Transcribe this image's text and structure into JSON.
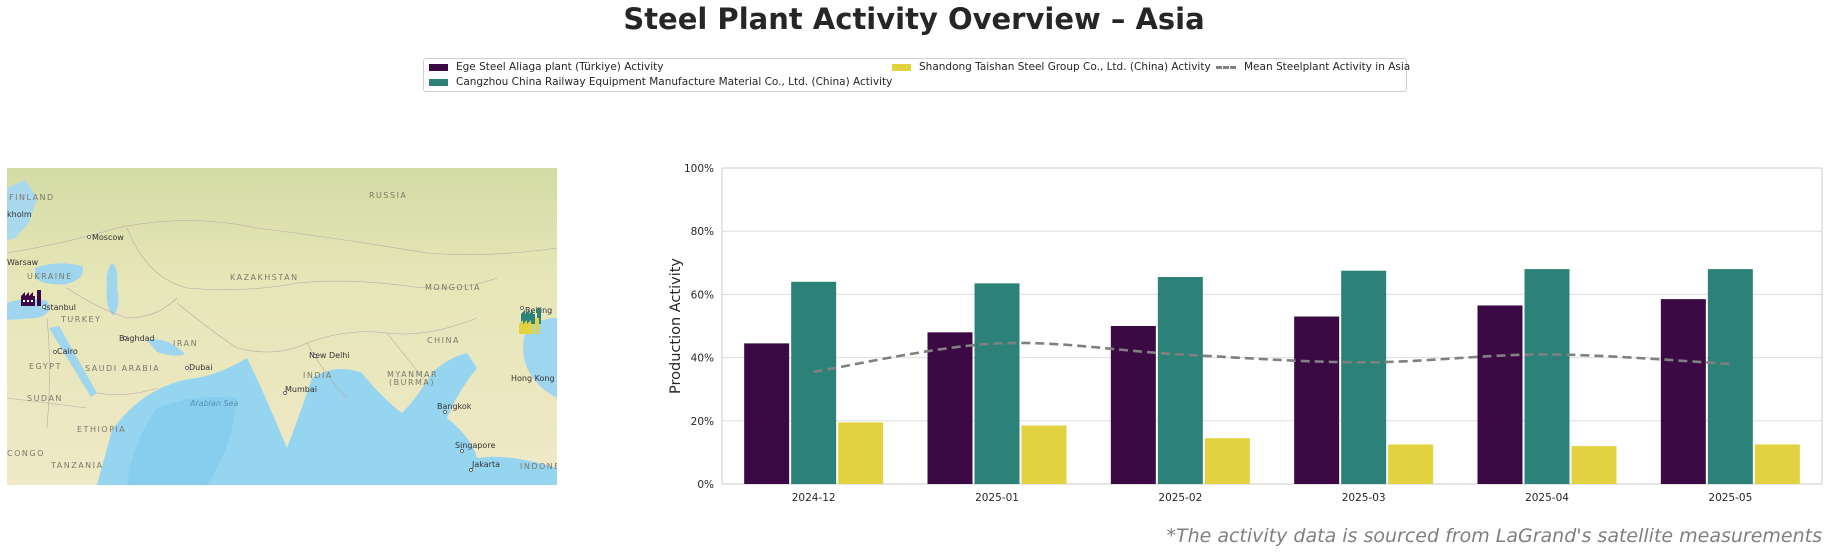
{
  "title": "Steel Plant Activity Overview – Asia",
  "footnote": "*The activity data is sourced from LaGrand's satellite measurements",
  "legend": [
    {
      "label": "Ege Steel Aliaga plant (Türkiye) Activity",
      "color": "#3b0a45",
      "kind": "bar"
    },
    {
      "label": "Cangzhou China Railway Equipment Manufacture Material Co., Ltd. (China) Activity",
      "color": "#2c8279",
      "kind": "bar"
    },
    {
      "label": "Shandong Taishan Steel Group Co., Ltd. (China) Activity",
      "color": "#e2d23f",
      "kind": "bar"
    },
    {
      "label": "Mean Steelplant Activity in Asia",
      "color": "#808080",
      "kind": "dashed-line"
    }
  ],
  "map": {
    "labels": [
      {
        "text": "FINLAND",
        "kind": "region"
      },
      {
        "text": "RUSSIA",
        "kind": "region"
      },
      {
        "text": "kholm",
        "kind": "city"
      },
      {
        "text": "Moscow",
        "kind": "city"
      },
      {
        "text": "Warsaw",
        "kind": "city"
      },
      {
        "text": "UKRAINE",
        "kind": "region"
      },
      {
        "text": "KAZAKHSTAN",
        "kind": "region"
      },
      {
        "text": "MONGOLIA",
        "kind": "region"
      },
      {
        "text": "Istanbul",
        "kind": "city"
      },
      {
        "text": "TURKEY",
        "kind": "region"
      },
      {
        "text": "Beijing",
        "kind": "city"
      },
      {
        "text": "Baghdad",
        "kind": "city"
      },
      {
        "text": "IRAN",
        "kind": "region"
      },
      {
        "text": "CHINA",
        "kind": "region"
      },
      {
        "text": "Cairo",
        "kind": "city"
      },
      {
        "text": "New Delhi",
        "kind": "city"
      },
      {
        "text": "EGYPT",
        "kind": "region"
      },
      {
        "text": "SAUDI ARABIA",
        "kind": "region"
      },
      {
        "text": "Dubai",
        "kind": "city"
      },
      {
        "text": "INDIA",
        "kind": "region"
      },
      {
        "text": "MYANMAR",
        "kind": "region"
      },
      {
        "text": "(BURMA)",
        "kind": "region"
      },
      {
        "text": "Hong Kong",
        "kind": "city"
      },
      {
        "text": "Mumbai",
        "kind": "city"
      },
      {
        "text": "SUDAN",
        "kind": "region"
      },
      {
        "text": "Arabian Sea",
        "kind": "sea"
      },
      {
        "text": "Bangkok",
        "kind": "city"
      },
      {
        "text": "ETHIOPIA",
        "kind": "region"
      },
      {
        "text": "Singapore",
        "kind": "city"
      },
      {
        "text": "CONGO",
        "kind": "region"
      },
      {
        "text": "TANZANIA",
        "kind": "region"
      },
      {
        "text": "Jakarta",
        "kind": "city"
      },
      {
        "text": "INDONE",
        "kind": "region"
      }
    ]
  },
  "chart_data": {
    "type": "bar",
    "categories": [
      "2024-12",
      "2025-01",
      "2025-02",
      "2025-03",
      "2025-04",
      "2025-05"
    ],
    "series": [
      {
        "name": "Ege Steel Aliaga plant (Türkiye) Activity",
        "color": "#3b0a45",
        "values": [
          44.5,
          48,
          50,
          53,
          56.5,
          58.5
        ]
      },
      {
        "name": "Cangzhou China Railway Equipment Manufacture Material Co., Ltd. (China) Activity",
        "color": "#2c8279",
        "values": [
          64,
          63.5,
          65.5,
          67.5,
          68,
          68
        ]
      },
      {
        "name": "Shandong Taishan Steel Group Co., Ltd. (China) Activity",
        "color": "#e2d23f",
        "values": [
          19.5,
          18.5,
          14.5,
          12.5,
          12,
          12.5
        ]
      }
    ],
    "mean_line": {
      "name": "Mean Steelplant Activity in Asia",
      "color": "#808080",
      "style": "dashed",
      "values": [
        35.5,
        44.5,
        41,
        38.5,
        41,
        38
      ]
    },
    "ylabel": "Production Activity",
    "xlabel": "",
    "ylim": [
      0,
      100
    ],
    "yticks": [
      "0%",
      "20%",
      "40%",
      "60%",
      "80%",
      "100%"
    ],
    "grid": "horizontal"
  }
}
